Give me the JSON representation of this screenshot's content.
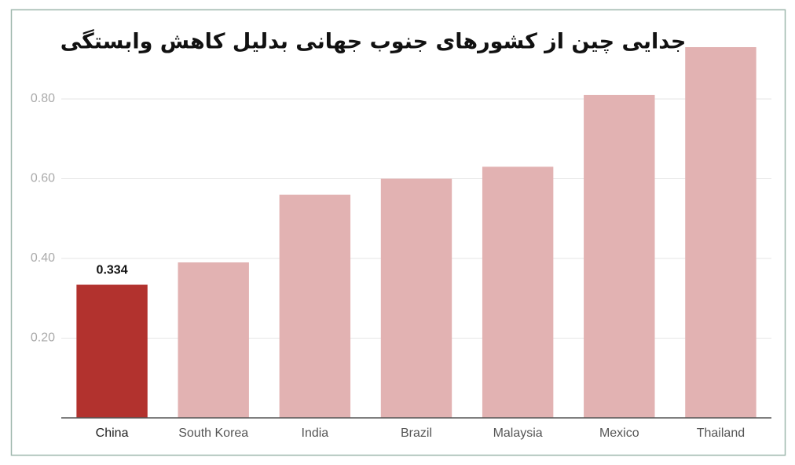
{
  "chart_data": {
    "type": "bar",
    "title": "جدایی چین از کشورهای جنوب جهانی بدلیل کاهش وابستگی",
    "categories": [
      "China",
      "South Korea",
      "India",
      "Brazil",
      "Malaysia",
      "Mexico",
      "Thailand"
    ],
    "values": [
      0.334,
      0.39,
      0.56,
      0.6,
      0.63,
      0.81,
      0.93
    ],
    "value_labels": [
      "0.334",
      null,
      null,
      null,
      null,
      null,
      null
    ],
    "colors": [
      "#b2322e",
      "#e2b2b2",
      "#e2b2b2",
      "#e2b2b2",
      "#e2b2b2",
      "#e2b2b2",
      "#e2b2b2"
    ],
    "ylim": [
      0,
      1
    ],
    "yticks": [
      {
        "value": 0.2,
        "label": "0.20"
      },
      {
        "value": 0.4,
        "label": "0.40"
      },
      {
        "value": 0.6,
        "label": "0.60"
      },
      {
        "value": 0.8,
        "label": "0.80"
      }
    ],
    "grid": true
  }
}
